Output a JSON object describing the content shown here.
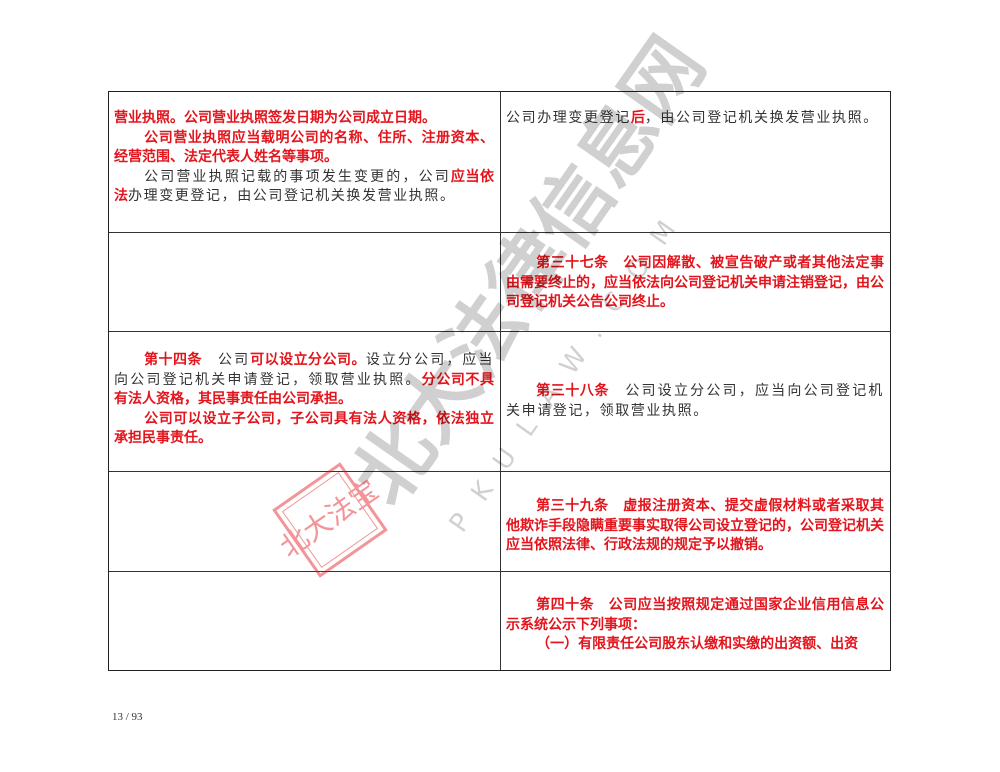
{
  "colors": {
    "red": "#e3141c",
    "black": "#333333",
    "border": "#222222"
  },
  "rows": [
    {
      "left": [
        {
          "indent": false,
          "runs": [
            {
              "t": "营业执照。公司营业执照签发日期为公司成立日期。",
              "red": true
            }
          ]
        },
        {
          "indent": true,
          "runs": [
            {
              "t": "公司营业执照应当载明公司的名称、住所、注册资本、经营范围、法定代表人姓名等事项。",
              "red": true
            }
          ]
        },
        {
          "indent": true,
          "runs": [
            {
              "t": "公司营业执照记载的事项发生变更的，公司",
              "red": false
            },
            {
              "t": "应当依法",
              "red": true
            },
            {
              "t": "办理变更登记，由公司登记机关换发营业执照。",
              "red": false
            }
          ]
        }
      ],
      "right": [
        {
          "indent": false,
          "runs": [
            {
              "t": "公司办理变更登记",
              "red": false
            },
            {
              "t": "后",
              "red": true
            },
            {
              "t": "，由公司登记机关换发营业执照。",
              "red": false
            }
          ]
        }
      ]
    },
    {
      "left": [],
      "right": [
        {
          "indent": true,
          "runs": [
            {
              "t": "第三十七条　公司因解散、被宣告破产或者其他法定事由需要终止的，应当依法向公司登记机关申请注销登记，由公司登记机关公告公司终止。",
              "red": true
            }
          ]
        }
      ]
    },
    {
      "left": [
        {
          "indent": true,
          "runs": [
            {
              "t": "第十四条",
              "red": true
            },
            {
              "t": "　公司",
              "red": false
            },
            {
              "t": "可以设立分公司。",
              "red": true
            },
            {
              "t": "设立分公司，应当向公司登记机关申请登记，领取营业执照。",
              "red": false
            },
            {
              "t": "分公司不具有法人资格，其民事责任由公司承担。",
              "red": true
            }
          ]
        },
        {
          "indent": true,
          "runs": [
            {
              "t": "公司可以设立子公司，子公司具有法人资格，依法独立承担民事责任。",
              "red": true
            }
          ]
        }
      ],
      "right": [
        {
          "indent": true,
          "runs": [
            {
              "t": "第三十八条",
              "red": true
            },
            {
              "t": "　公司设立分公司，应当向公司登记机关申请登记，领取营业执照。",
              "red": false
            }
          ]
        }
      ]
    },
    {
      "left": [],
      "right": [
        {
          "indent": true,
          "runs": [
            {
              "t": "第三十九条　虚报注册资本、提交虚假材料或者采取其他欺诈手段隐瞒重要事实取得公司设立登记的，公司登记机关应当依照法律、行政法规的规定予以撤销。",
              "red": true
            }
          ]
        }
      ]
    },
    {
      "left": [],
      "right": [
        {
          "indent": true,
          "runs": [
            {
              "t": "第四十条　公司应当按照规定通过国家企业信用信息公示系统公示下列事项：",
              "red": true
            }
          ]
        },
        {
          "indent": true,
          "runs": [
            {
              "t": "（一）有限责任公司股东认缴和实缴的出资额、出资",
              "red": true
            }
          ]
        }
      ]
    }
  ],
  "watermark": {
    "text": "北大法律信息网",
    "site": "PKULAW.COM",
    "seal": "北大法宝"
  },
  "footer": {
    "page": "13 / 93"
  }
}
